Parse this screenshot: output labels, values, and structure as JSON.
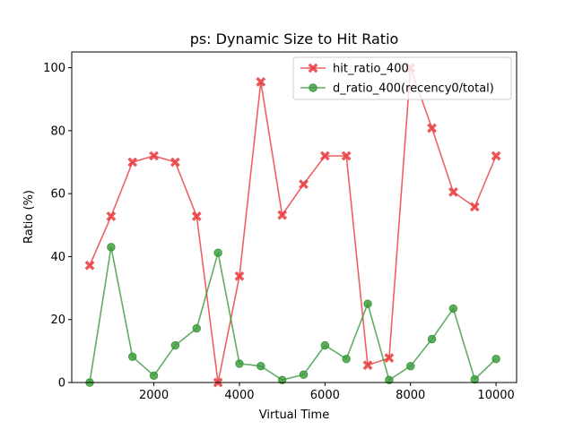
{
  "chart_data": {
    "type": "line",
    "title": "ps: Dynamic Size to Hit Ratio",
    "xlabel": "Virtual Time",
    "ylabel": "Ratio (%)",
    "xlim": [
      80,
      10480
    ],
    "ylim": [
      0,
      105
    ],
    "xticks": [
      2000,
      4000,
      6000,
      8000,
      10000
    ],
    "yticks": [
      0,
      20,
      40,
      60,
      80,
      100
    ],
    "grid": false,
    "legend_position": "top-right",
    "x": [
      500,
      1000,
      1500,
      2000,
      2500,
      3000,
      3500,
      4000,
      4500,
      5000,
      5500,
      6000,
      6500,
      7000,
      7500,
      8000,
      8500,
      9000,
      9500,
      10000
    ],
    "series": [
      {
        "name": "hit_ratio_400",
        "color": "#e8393c",
        "marker": "x",
        "values": [
          37.2,
          52.8,
          70.0,
          72.0,
          70.0,
          52.8,
          0.0,
          33.8,
          95.5,
          53.2,
          63.0,
          72.0,
          72.0,
          5.5,
          7.8,
          100.0,
          80.8,
          60.5,
          55.8,
          72.0
        ]
      },
      {
        "name": "d_ratio_400(recency0/total)",
        "color": "#3a9a3a",
        "marker": "o",
        "values": [
          0.0,
          43.0,
          8.2,
          2.2,
          11.8,
          17.2,
          41.2,
          6.0,
          5.2,
          0.8,
          2.5,
          11.8,
          7.5,
          25.0,
          0.8,
          5.2,
          13.8,
          23.5,
          1.0,
          7.5
        ]
      }
    ]
  }
}
